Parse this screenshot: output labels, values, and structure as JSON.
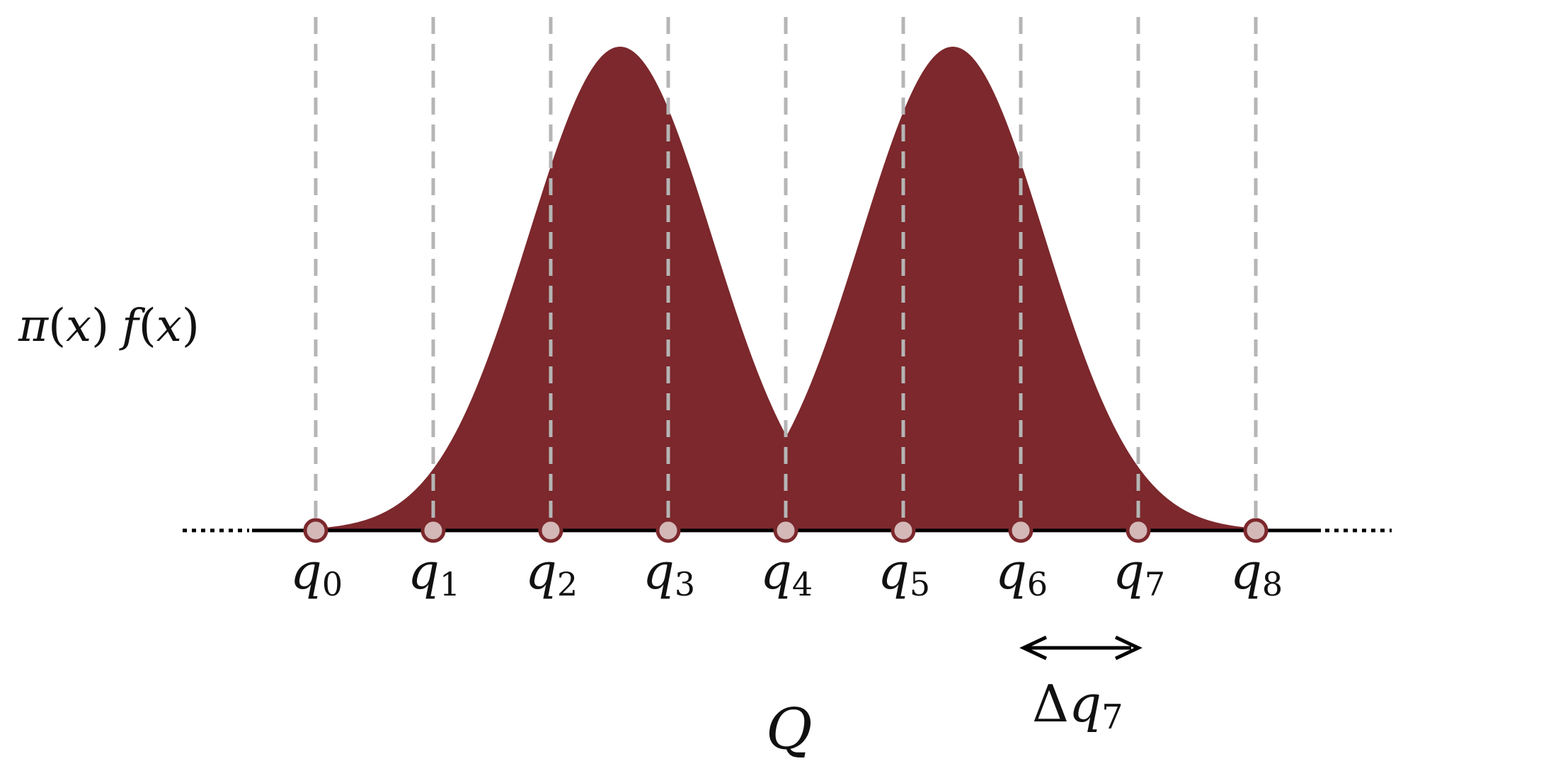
{
  "figure": {
    "y_label_parts": [
      "π",
      "(",
      "x",
      ")",
      "f",
      "(",
      "x",
      ")"
    ],
    "x_label": "Q",
    "node_symbol": "q",
    "nodes": [
      "0",
      "1",
      "2",
      "3",
      "4",
      "5",
      "6",
      "7",
      "8"
    ],
    "delta_label": {
      "symbol": "Δ",
      "base": "q",
      "index": "7"
    },
    "delta_between": [
      6,
      7
    ],
    "curve_shape": "two equal Gaussian humps spanning q0–q4 and q4–q8, peaks between q2–q3 and q5–q6",
    "colors": {
      "fill": "#7c282c",
      "grid": "#b5b5b5",
      "node_fill": "#d4b8b8",
      "node_stroke": "#7c282c",
      "axis": "#000000"
    }
  }
}
